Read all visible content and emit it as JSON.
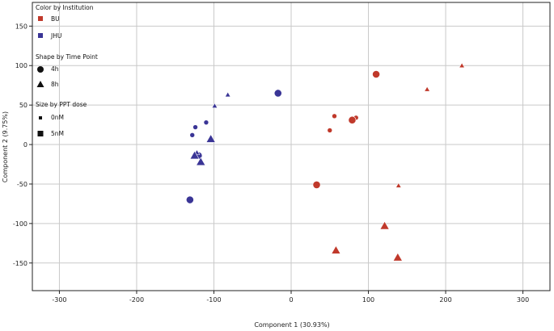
{
  "chart_data": {
    "type": "scatter",
    "xlabel": "Component 1 (30.93%)",
    "ylabel": "Component 2 (9.75%)",
    "xlim": [
      -335,
      335
    ],
    "ylim": [
      -185,
      180
    ],
    "xticks": [
      -300,
      -200,
      -100,
      0,
      100,
      200,
      300
    ],
    "yticks": [
      150,
      100,
      50,
      0,
      -50,
      -100,
      -150
    ],
    "grid": true,
    "legend_placement": "top-left",
    "legend": {
      "color_title": "Color by Institution",
      "color_entries": [
        {
          "label": "BU",
          "color": "#c0392b"
        },
        {
          "label": "JHU",
          "color": "#3a3596"
        }
      ],
      "shape_title": "Shape by Time Point",
      "shape_entries": [
        {
          "label": "4h",
          "shape": "circle"
        },
        {
          "label": "8h",
          "shape": "triangle"
        }
      ],
      "size_title": "Size by PPT dose",
      "size_entries": [
        {
          "label": "0nM",
          "size": "small"
        },
        {
          "label": "5nM",
          "size": "large"
        }
      ]
    },
    "colors": {
      "BU": "#c0392b",
      "JHU": "#3a3596"
    },
    "points": [
      {
        "x": 110,
        "y": 89,
        "institution": "BU",
        "time": "4h",
        "dose": "5nM"
      },
      {
        "x": 56,
        "y": 36,
        "institution": "BU",
        "time": "4h",
        "dose": "0nM"
      },
      {
        "x": 84,
        "y": 34,
        "institution": "BU",
        "time": "4h",
        "dose": "0nM"
      },
      {
        "x": 79,
        "y": 31,
        "institution": "BU",
        "time": "4h",
        "dose": "5nM"
      },
      {
        "x": 50,
        "y": 18,
        "institution": "BU",
        "time": "4h",
        "dose": "0nM"
      },
      {
        "x": 33,
        "y": -51,
        "institution": "BU",
        "time": "4h",
        "dose": "5nM"
      },
      {
        "x": 221,
        "y": 100,
        "institution": "BU",
        "time": "8h",
        "dose": "0nM"
      },
      {
        "x": 176,
        "y": 70,
        "institution": "BU",
        "time": "8h",
        "dose": "0nM"
      },
      {
        "x": 139,
        "y": -52,
        "institution": "BU",
        "time": "8h",
        "dose": "0nM"
      },
      {
        "x": 121,
        "y": -103,
        "institution": "BU",
        "time": "8h",
        "dose": "5nM"
      },
      {
        "x": 58,
        "y": -134,
        "institution": "BU",
        "time": "8h",
        "dose": "5nM"
      },
      {
        "x": 138,
        "y": -143,
        "institution": "BU",
        "time": "8h",
        "dose": "5nM"
      },
      {
        "x": -17,
        "y": 65,
        "institution": "JHU",
        "time": "4h",
        "dose": "5nM"
      },
      {
        "x": -110,
        "y": 28,
        "institution": "JHU",
        "time": "4h",
        "dose": "0nM"
      },
      {
        "x": -124,
        "y": 22,
        "institution": "JHU",
        "time": "4h",
        "dose": "0nM"
      },
      {
        "x": -128,
        "y": 12,
        "institution": "JHU",
        "time": "4h",
        "dose": "0nM"
      },
      {
        "x": -120,
        "y": -14,
        "institution": "JHU",
        "time": "4h",
        "dose": "5nM"
      },
      {
        "x": -131,
        "y": -70,
        "institution": "JHU",
        "time": "4h",
        "dose": "5nM"
      },
      {
        "x": -82,
        "y": 63,
        "institution": "JHU",
        "time": "8h",
        "dose": "0nM"
      },
      {
        "x": -99,
        "y": 49,
        "institution": "JHU",
        "time": "8h",
        "dose": "0nM"
      },
      {
        "x": -104,
        "y": 7,
        "institution": "JHU",
        "time": "8h",
        "dose": "5nM"
      },
      {
        "x": -122,
        "y": -10,
        "institution": "JHU",
        "time": "8h",
        "dose": "0nM"
      },
      {
        "x": -125,
        "y": -14,
        "institution": "JHU",
        "time": "8h",
        "dose": "5nM"
      },
      {
        "x": -117,
        "y": -22,
        "institution": "JHU",
        "time": "8h",
        "dose": "5nM"
      }
    ]
  }
}
